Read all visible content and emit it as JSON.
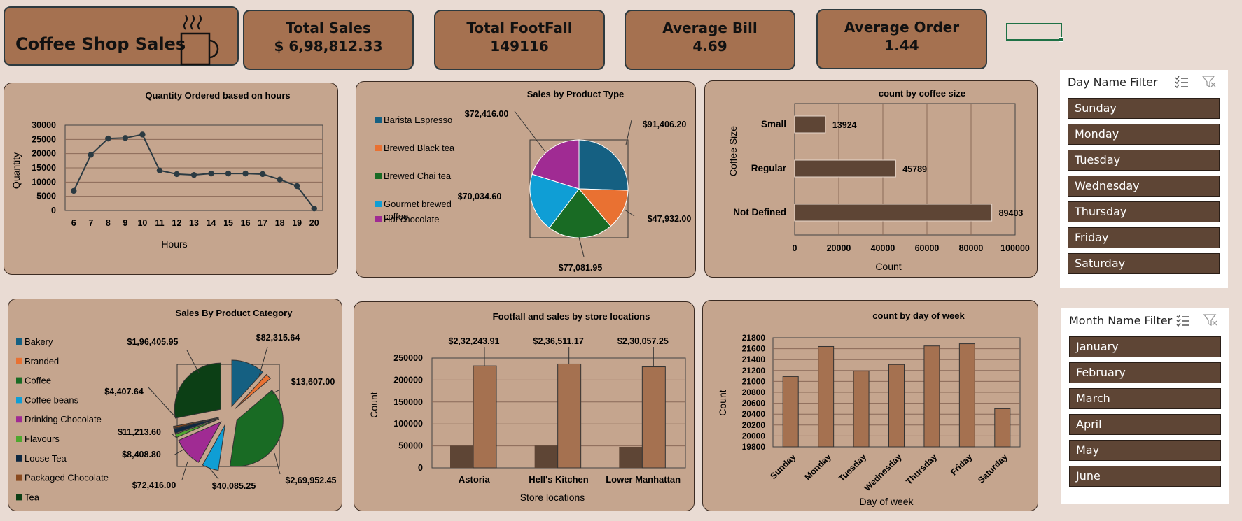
{
  "dashboard": {
    "title": "Coffee Shop Sales",
    "icon": "coffee-mug-icon",
    "kpis": [
      {
        "label": "Total Sales",
        "value": "$ 6,98,812.33"
      },
      {
        "label": "Total FootFall",
        "value": "149116"
      },
      {
        "label": "Average Bill",
        "value": "4.69"
      },
      {
        "label": "Average Order",
        "value": "1.44"
      }
    ]
  },
  "colors": {
    "panel": "#c5a58e",
    "kpi": "#a57150",
    "dark_bar": "#5e4535",
    "light_bar": "#a57150",
    "line": "#2b3a42",
    "background": "#e9dbd3"
  },
  "slicers": {
    "day": {
      "title": "Day Name Filter",
      "items": [
        "Sunday",
        "Monday",
        "Tuesday",
        "Wednesday",
        "Thursday",
        "Friday",
        "Saturday"
      ]
    },
    "month": {
      "title": "Month Name Filter",
      "items": [
        "January",
        "February",
        "March",
        "April",
        "May",
        "June"
      ]
    }
  },
  "chart_data": [
    {
      "id": "hours",
      "type": "line",
      "title": "Quantity Ordered based on hours",
      "xlabel": "Hours",
      "ylabel": "Quantity",
      "x": [
        "6",
        "7",
        "8",
        "9",
        "10",
        "11",
        "12",
        "13",
        "14",
        "15",
        "16",
        "17",
        "18",
        "19",
        "20"
      ],
      "values": [
        6900,
        19600,
        25300,
        25500,
        26700,
        14100,
        12800,
        12500,
        13000,
        13000,
        13000,
        12800,
        10900,
        8600,
        700
      ],
      "ylim": [
        0,
        30000
      ],
      "yticks": [
        "0",
        "5000",
        "10000",
        "15000",
        "20000",
        "25000",
        "30000"
      ],
      "grid": true
    },
    {
      "id": "product_type",
      "type": "pie",
      "title": "Sales by Product Type",
      "legend_position": "left",
      "categories": [
        "Barista Espresso",
        "Brewed Black tea",
        "Brewed Chai tea",
        "Gourmet brewed coffee",
        "Hot chocolate"
      ],
      "values": [
        91406.2,
        47932.0,
        77081.95,
        70034.6,
        72416.0
      ],
      "labels": [
        "$91,406.20",
        "$47,932.00",
        "$77,081.95",
        "$70,034.60",
        "$72,416.00"
      ],
      "colors": [
        "#156082",
        "#e97132",
        "#196b24",
        "#0f9ed5",
        "#a02b93"
      ]
    },
    {
      "id": "coffee_size",
      "type": "bar",
      "orientation": "horizontal",
      "title": "count by coffee size",
      "xlabel": "Count",
      "ylabel": "Coffee Size",
      "categories": [
        "Small",
        "Regular",
        "Not Defined"
      ],
      "values": [
        13924,
        45789,
        89403
      ],
      "xlim": [
        0,
        100000
      ],
      "xticks": [
        "0",
        "20000",
        "40000",
        "60000",
        "80000",
        "100000"
      ]
    },
    {
      "id": "product_category",
      "type": "pie",
      "exploded": true,
      "title": "Sales By Product Category",
      "legend_position": "left",
      "categories": [
        "Bakery",
        "Branded",
        "Coffee",
        "Coffee beans",
        "Drinking Chocolate",
        "Flavours",
        "Loose Tea",
        "Packaged Chocolate",
        "Tea"
      ],
      "values": [
        82315.64,
        13607.0,
        269952.45,
        40085.25,
        72416.0,
        8408.8,
        11213.6,
        4407.64,
        196405.95
      ],
      "labels": [
        "$82,315.64",
        "$13,607.00",
        "$2,69,952.45",
        "$40,085.25",
        "$72,416.00",
        "$8,408.80",
        "$11,213.60",
        "$4,407.64",
        "$1,96,405.95"
      ],
      "colors": [
        "#156082",
        "#e97132",
        "#196b24",
        "#0f9ed5",
        "#a02b93",
        "#4ea72e",
        "#0e2841",
        "#8a4a1f",
        "#0c3f15"
      ]
    },
    {
      "id": "store_locations",
      "type": "bar",
      "title": "Footfall and sales by store locations",
      "xlabel": "Store locations",
      "ylabel": "Count",
      "categories": [
        "Astoria",
        "Hell's Kitchen",
        "Lower Manhattan"
      ],
      "series": [
        {
          "values": [
            50599,
            50735,
            47782
          ]
        },
        {
          "values": [
            232243.91,
            236511.17,
            230057.25
          ],
          "labels": [
            "$2,32,243.91",
            "$2,36,511.17",
            "$2,30,057.25"
          ]
        }
      ],
      "ylim": [
        0,
        250000
      ],
      "yticks": [
        "0",
        "50000",
        "100000",
        "150000",
        "200000",
        "250000"
      ]
    },
    {
      "id": "day_of_week",
      "type": "bar",
      "title": "count by day of week",
      "xlabel": "Day of week",
      "ylabel": "Count",
      "categories": [
        "Sunday",
        "Monday",
        "Tuesday",
        "Wednesday",
        "Thursday",
        "Friday",
        "Saturday"
      ],
      "values": [
        21090,
        21640,
        21190,
        21310,
        21650,
        21690,
        20500
      ],
      "ylim": [
        19800,
        21800
      ],
      "yticks": [
        "19800",
        "20000",
        "20200",
        "20400",
        "20600",
        "20800",
        "21000",
        "21200",
        "21400",
        "21600",
        "21800"
      ]
    }
  ]
}
